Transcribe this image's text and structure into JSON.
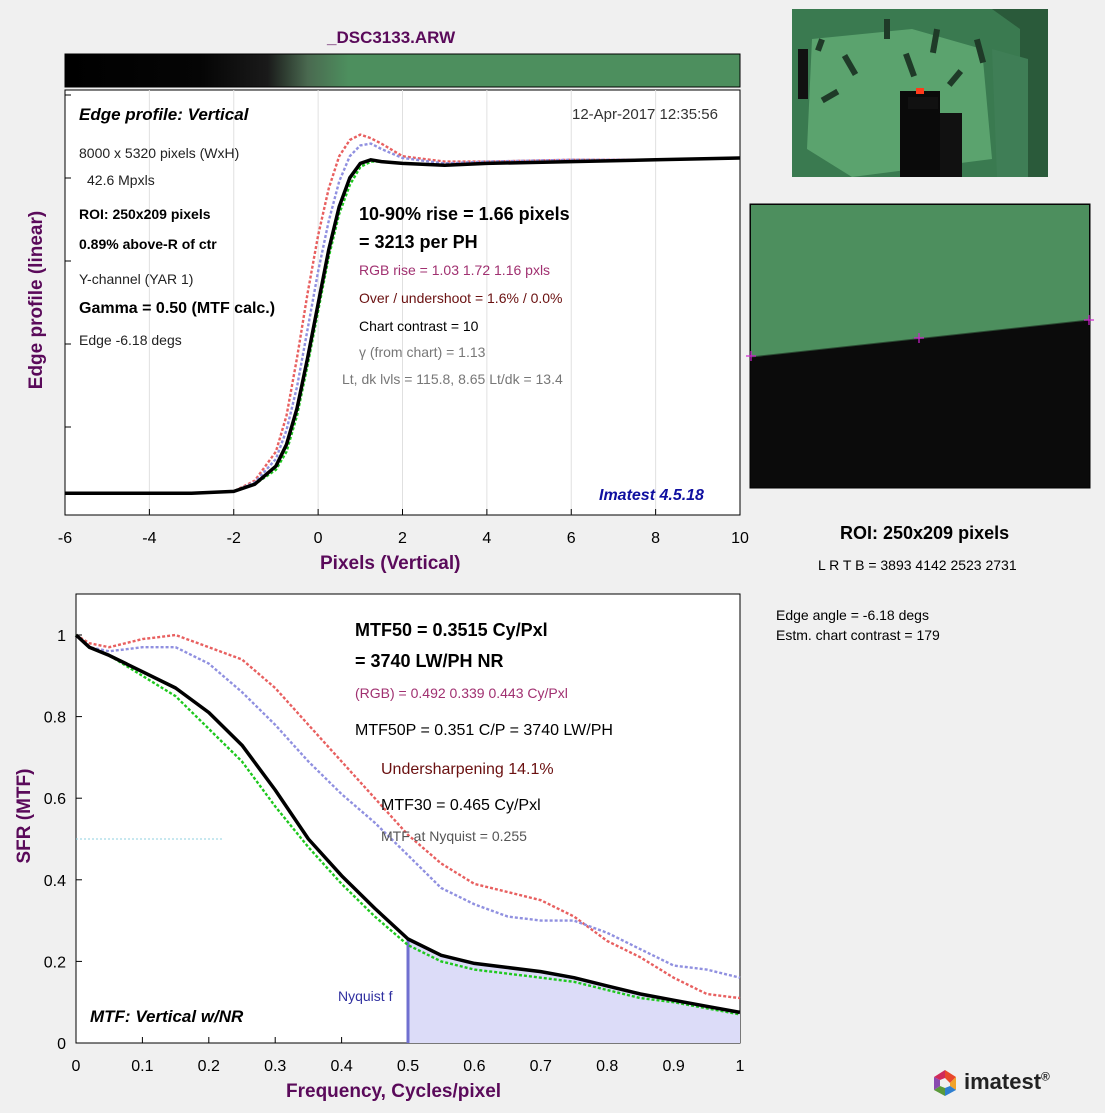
{
  "file_title": "_DSC3133.ARW",
  "edge_panel": {
    "title": "Edge profile: Vertical",
    "date": "12-Apr-2017 12:35:56",
    "info": [
      "8000 x 5320 pixels (WxH)",
      "42.6 Mpxls",
      "ROI:  250x209 pixels",
      "0.89% above-R of ctr",
      "Y-channel  (YAR 1)",
      "Gamma = 0.50 (MTF calc.)",
      "Edge  -6.18 degs"
    ],
    "rise_line1": "10-90% rise = 1.66 pixels",
    "rise_line2": "=   3213 per PH",
    "rgb_rise": "RGB rise =   1.03    1.72    1.16 pxls",
    "overshoot": "Over / undershoot =  1.6% /  0.0%",
    "chart_contrast": "Chart contrast = 10",
    "gamma_chart": "γ (from chart) =  1.13",
    "levels": "Lt, dk lvls =  115.8,   8.65   Lt/dk =   13.4",
    "version": "Imatest 4.5.18",
    "ylabel": "Edge profile (linear)",
    "xlabel": "Pixels (Vertical)"
  },
  "roi_panel": {
    "label": "ROI:  250x209 pixels",
    "coords": "L R  T B = 3893 4142  2523 2731",
    "edge_angle": "Edge angle = -6.18 degs",
    "chart_contrast": "Estm. chart contrast = 179"
  },
  "mtf_panel": {
    "mtf50_line1": "MTF50 = 0.3515 Cy/Pxl",
    "mtf50_line2": "= 3740 LW/PH  NR",
    "rgb": "(RGB) = 0.492  0.339  0.443 Cy/Pxl",
    "mtf50p": "MTF50P = 0.351 C/P = 3740 LW/PH",
    "undersharp": "Undersharpening 14.1%",
    "mtf30": "MTF30 = 0.465 Cy/Pxl",
    "nyquist_mtf": "MTF at Nyquist = 0.255",
    "nyquist_label": "Nyquist f",
    "label": "MTF: Vertical w/NR",
    "ylabel": "SFR (MTF)",
    "xlabel": "Frequency, Cycles/pixel"
  },
  "logo": {
    "text": "imatest",
    "mark": "®"
  },
  "colors": {
    "red": "#e86060",
    "blue": "#9090e0",
    "green": "#1ec81e",
    "black": "#000000",
    "title": "#5a0a5a",
    "green_patch": "#4d8f5e",
    "nyquist_fill": "#dcdcf8"
  },
  "chart_data": [
    {
      "type": "line",
      "title": "_DSC3133.ARW",
      "xlabel": "Pixels (Vertical)",
      "ylabel": "Edge profile (linear)",
      "xlim": [
        -6,
        10
      ],
      "ylim": [
        0,
        1.05
      ],
      "xticks": [
        -6,
        -4,
        -2,
        0,
        2,
        4,
        6,
        8,
        10
      ],
      "series": [
        {
          "color": "black",
          "x": [
            -6,
            -3,
            -2,
            -1.5,
            -1,
            -0.75,
            -0.5,
            -0.25,
            0,
            0.25,
            0.5,
            0.75,
            1,
            1.25,
            1.5,
            2,
            3,
            4,
            6,
            8,
            10
          ],
          "y": [
            0.005,
            0.005,
            0.01,
            0.03,
            0.08,
            0.14,
            0.24,
            0.38,
            0.53,
            0.68,
            0.8,
            0.88,
            0.92,
            0.93,
            0.925,
            0.92,
            0.915,
            0.92,
            0.925,
            0.93,
            0.935
          ]
        },
        {
          "color": "red",
          "x": [
            -6,
            -3,
            -2,
            -1.5,
            -1,
            -0.75,
            -0.5,
            -0.25,
            0,
            0.25,
            0.5,
            0.75,
            1,
            1.25,
            1.5,
            2,
            3,
            4,
            6,
            8,
            10
          ],
          "y": [
            0.005,
            0.005,
            0.01,
            0.04,
            0.12,
            0.22,
            0.38,
            0.56,
            0.72,
            0.85,
            0.94,
            0.985,
            1.0,
            0.99,
            0.975,
            0.94,
            0.925,
            0.925,
            0.93,
            0.93,
            0.935
          ]
        },
        {
          "color": "blue",
          "x": [
            -6,
            -3,
            -2,
            -1.5,
            -1,
            -0.75,
            -0.5,
            -0.25,
            0,
            0.25,
            0.5,
            0.75,
            1,
            1.25,
            1.5,
            2,
            3,
            4,
            6,
            8,
            10
          ],
          "y": [
            0.005,
            0.005,
            0.01,
            0.035,
            0.1,
            0.18,
            0.3,
            0.46,
            0.62,
            0.76,
            0.87,
            0.94,
            0.97,
            0.975,
            0.96,
            0.935,
            0.92,
            0.925,
            0.93,
            0.93,
            0.935
          ]
        },
        {
          "color": "green",
          "x": [
            -6,
            -3,
            -2,
            -1.5,
            -1,
            -0.75,
            -0.5,
            -0.25,
            0,
            0.25,
            0.5,
            0.75,
            1,
            1.25,
            1.5,
            2,
            3,
            4,
            6,
            8,
            10
          ],
          "y": [
            0.005,
            0.005,
            0.01,
            0.03,
            0.07,
            0.12,
            0.22,
            0.36,
            0.51,
            0.66,
            0.78,
            0.86,
            0.91,
            0.925,
            0.925,
            0.92,
            0.915,
            0.92,
            0.925,
            0.93,
            0.935
          ]
        }
      ]
    },
    {
      "type": "line",
      "xlabel": "Frequency, Cycles/pixel",
      "ylabel": "SFR (MTF)",
      "xlim": [
        0,
        1
      ],
      "ylim": [
        0,
        1.08
      ],
      "xticks": [
        0,
        0.1,
        0.2,
        0.3,
        0.4,
        0.5,
        0.6,
        0.7,
        0.8,
        0.9,
        1
      ],
      "yticks": [
        0,
        0.2,
        0.4,
        0.6,
        0.8,
        1
      ],
      "nyquist": 0.5,
      "series": [
        {
          "color": "black",
          "x": [
            0,
            0.02,
            0.05,
            0.1,
            0.15,
            0.2,
            0.25,
            0.3,
            0.35,
            0.4,
            0.45,
            0.5,
            0.55,
            0.6,
            0.65,
            0.7,
            0.75,
            0.8,
            0.85,
            0.9,
            0.95,
            1
          ],
          "y": [
            1.0,
            0.97,
            0.95,
            0.91,
            0.87,
            0.81,
            0.73,
            0.62,
            0.5,
            0.41,
            0.33,
            0.255,
            0.215,
            0.195,
            0.185,
            0.175,
            0.16,
            0.14,
            0.12,
            0.105,
            0.09,
            0.075
          ]
        },
        {
          "color": "green",
          "x": [
            0,
            0.02,
            0.05,
            0.1,
            0.15,
            0.2,
            0.25,
            0.3,
            0.35,
            0.4,
            0.45,
            0.5,
            0.55,
            0.6,
            0.65,
            0.7,
            0.75,
            0.8,
            0.85,
            0.9,
            0.95,
            1
          ],
          "y": [
            1.0,
            0.97,
            0.95,
            0.9,
            0.85,
            0.77,
            0.69,
            0.58,
            0.48,
            0.39,
            0.31,
            0.24,
            0.2,
            0.18,
            0.17,
            0.16,
            0.15,
            0.13,
            0.11,
            0.1,
            0.085,
            0.07
          ]
        },
        {
          "color": "red",
          "x": [
            0,
            0.02,
            0.05,
            0.1,
            0.15,
            0.2,
            0.25,
            0.3,
            0.35,
            0.4,
            0.45,
            0.5,
            0.55,
            0.6,
            0.65,
            0.7,
            0.75,
            0.8,
            0.85,
            0.9,
            0.95,
            1
          ],
          "y": [
            1.0,
            0.98,
            0.97,
            0.99,
            1.0,
            0.97,
            0.94,
            0.87,
            0.78,
            0.69,
            0.6,
            0.51,
            0.44,
            0.39,
            0.37,
            0.35,
            0.31,
            0.25,
            0.21,
            0.16,
            0.12,
            0.11
          ]
        },
        {
          "color": "blue",
          "x": [
            0,
            0.02,
            0.05,
            0.1,
            0.15,
            0.2,
            0.25,
            0.3,
            0.35,
            0.4,
            0.45,
            0.5,
            0.55,
            0.6,
            0.65,
            0.7,
            0.75,
            0.8,
            0.85,
            0.9,
            0.95,
            1
          ],
          "y": [
            1.0,
            0.97,
            0.96,
            0.97,
            0.97,
            0.93,
            0.86,
            0.78,
            0.69,
            0.61,
            0.54,
            0.46,
            0.38,
            0.34,
            0.31,
            0.3,
            0.3,
            0.27,
            0.23,
            0.19,
            0.18,
            0.16
          ]
        }
      ]
    }
  ]
}
